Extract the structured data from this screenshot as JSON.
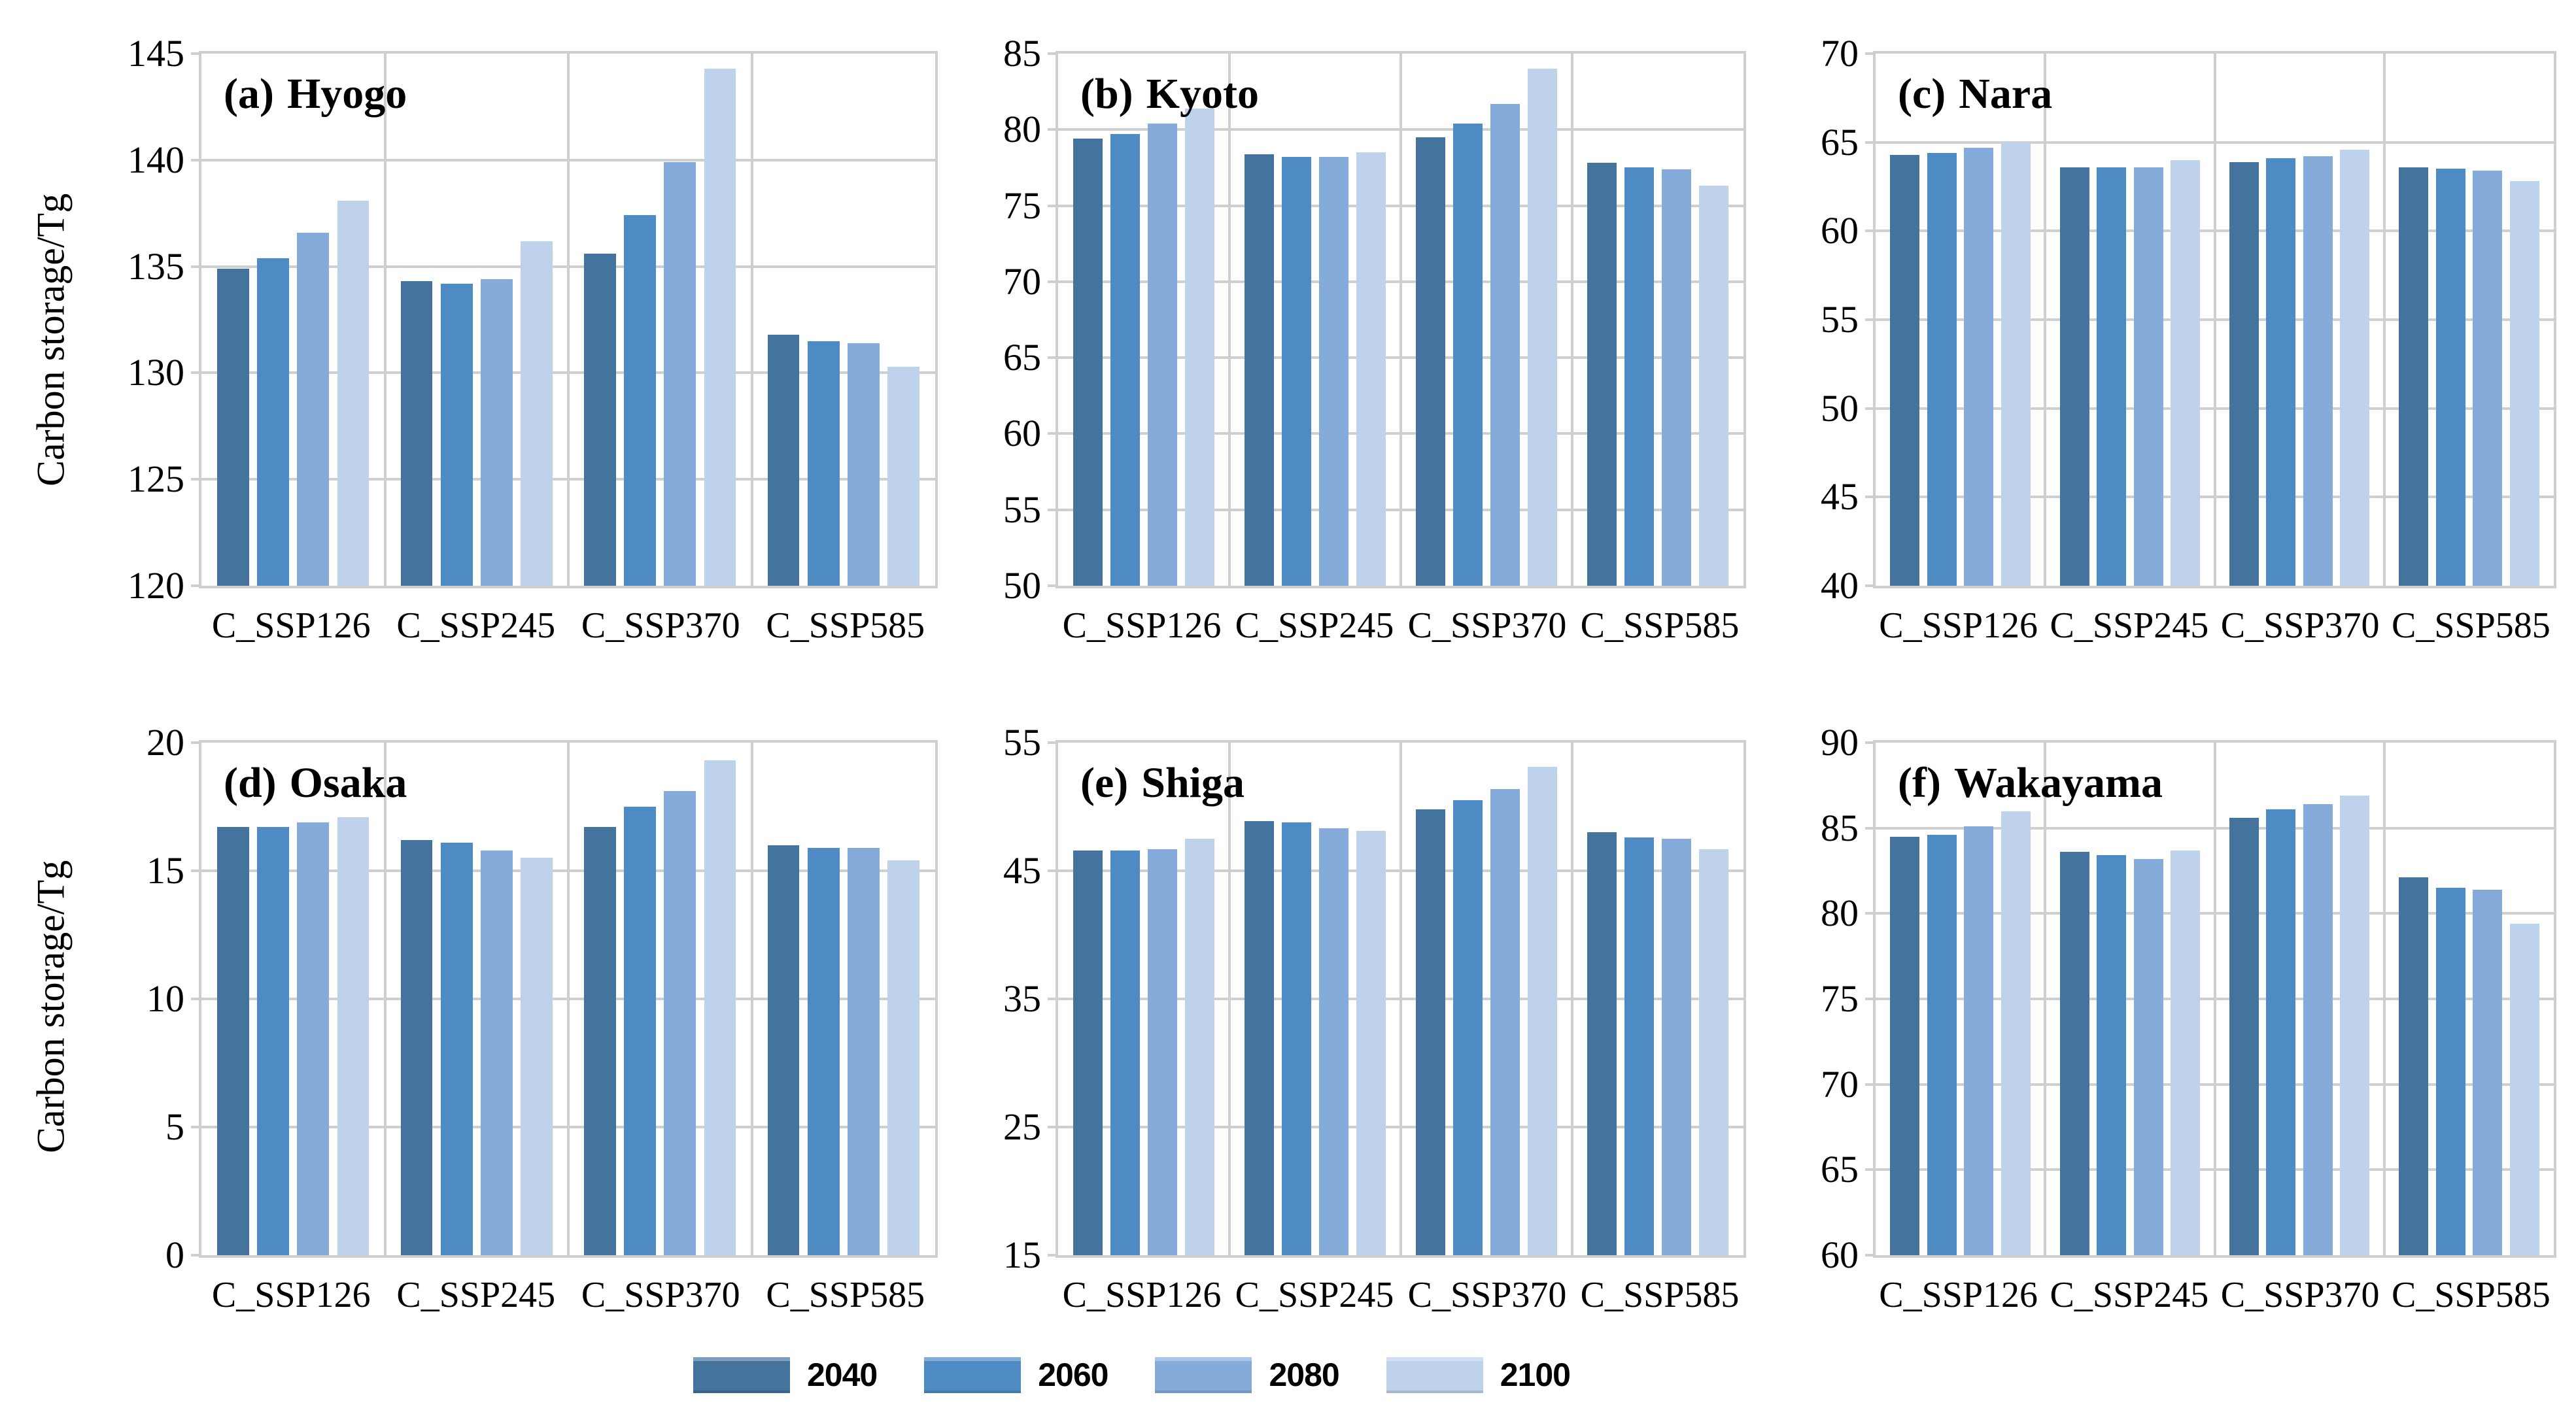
{
  "figure": {
    "y_axis_label": "Carbon storage/Tg",
    "categories": [
      "C_SSP126",
      "C_SSP245",
      "C_SSP370",
      "C_SSP585"
    ],
    "legend": [
      "2040",
      "2060",
      "2080",
      "2100"
    ],
    "colors": {
      "2040": "#44739E",
      "2060": "#4E8AC3",
      "2080": "#85ABDA",
      "2100": "#BFD2EB"
    },
    "grid_color": "#cfcfcf",
    "legend_position": "bottom-center"
  },
  "chart_data": [
    {
      "type": "bar",
      "panel_label": "(a)",
      "region": "Hyogo",
      "ylabel": "Carbon storage/Tg",
      "show_ylabel": true,
      "ylim": [
        120,
        145
      ],
      "ystep": 5,
      "grid": true,
      "categories": [
        "C_SSP126",
        "C_SSP245",
        "C_SSP370",
        "C_SSP585"
      ],
      "series": [
        {
          "name": "2040",
          "values": [
            134.9,
            134.3,
            135.6,
            131.8
          ]
        },
        {
          "name": "2060",
          "values": [
            135.4,
            134.2,
            137.4,
            131.5
          ]
        },
        {
          "name": "2080",
          "values": [
            136.6,
            134.4,
            139.9,
            131.4
          ]
        },
        {
          "name": "2100",
          "values": [
            138.1,
            136.2,
            144.3,
            130.3
          ]
        }
      ]
    },
    {
      "type": "bar",
      "panel_label": "(b)",
      "region": "Kyoto",
      "show_ylabel": false,
      "ylim": [
        50,
        85
      ],
      "ystep": 5,
      "grid": true,
      "categories": [
        "C_SSP126",
        "C_SSP245",
        "C_SSP370",
        "C_SSP585"
      ],
      "series": [
        {
          "name": "2040",
          "values": [
            79.4,
            78.4,
            79.5,
            77.8
          ]
        },
        {
          "name": "2060",
          "values": [
            79.7,
            78.2,
            80.4,
            77.5
          ]
        },
        {
          "name": "2080",
          "values": [
            80.4,
            78.2,
            81.7,
            77.4
          ]
        },
        {
          "name": "2100",
          "values": [
            81.4,
            78.5,
            84.0,
            76.3
          ]
        }
      ]
    },
    {
      "type": "bar",
      "panel_label": "(c)",
      "region": "Nara",
      "show_ylabel": false,
      "ylim": [
        40,
        70
      ],
      "ystep": 5,
      "grid": true,
      "categories": [
        "C_SSP126",
        "C_SSP245",
        "C_SSP370",
        "C_SSP585"
      ],
      "series": [
        {
          "name": "2040",
          "values": [
            64.3,
            63.6,
            63.9,
            63.6
          ]
        },
        {
          "name": "2060",
          "values": [
            64.4,
            63.6,
            64.1,
            63.5
          ]
        },
        {
          "name": "2080",
          "values": [
            64.7,
            63.6,
            64.2,
            63.4
          ]
        },
        {
          "name": "2100",
          "values": [
            65.0,
            64.0,
            64.6,
            62.8
          ]
        }
      ]
    },
    {
      "type": "bar",
      "panel_label": "(d)",
      "region": "Osaka",
      "ylabel": "Carbon storage/Tg",
      "show_ylabel": true,
      "ylim": [
        0,
        20
      ],
      "ystep": 5,
      "grid": true,
      "categories": [
        "C_SSP126",
        "C_SSP245",
        "C_SSP370",
        "C_SSP585"
      ],
      "series": [
        {
          "name": "2040",
          "values": [
            16.7,
            16.2,
            16.7,
            16.0
          ]
        },
        {
          "name": "2060",
          "values": [
            16.7,
            16.1,
            17.5,
            15.9
          ]
        },
        {
          "name": "2080",
          "values": [
            16.9,
            15.8,
            18.1,
            15.9
          ]
        },
        {
          "name": "2100",
          "values": [
            17.1,
            15.5,
            19.3,
            15.4
          ]
        }
      ]
    },
    {
      "type": "bar",
      "panel_label": "(e)",
      "region": "Shiga",
      "show_ylabel": false,
      "ylim": [
        15,
        55
      ],
      "ystep": 10,
      "grid": true,
      "categories": [
        "C_SSP126",
        "C_SSP245",
        "C_SSP370",
        "C_SSP585"
      ],
      "series": [
        {
          "name": "2040",
          "values": [
            46.6,
            48.9,
            49.8,
            48.0
          ]
        },
        {
          "name": "2060",
          "values": [
            46.6,
            48.8,
            50.5,
            47.6
          ]
        },
        {
          "name": "2080",
          "values": [
            46.7,
            48.3,
            51.4,
            47.5
          ]
        },
        {
          "name": "2100",
          "values": [
            47.5,
            48.1,
            53.1,
            46.7
          ]
        }
      ]
    },
    {
      "type": "bar",
      "panel_label": "(f)",
      "region": "Wakayama",
      "show_ylabel": false,
      "ylim": [
        60,
        90
      ],
      "ystep": 5,
      "grid": true,
      "categories": [
        "C_SSP126",
        "C_SSP245",
        "C_SSP370",
        "C_SSP585"
      ],
      "series": [
        {
          "name": "2040",
          "values": [
            84.5,
            83.6,
            85.6,
            82.1
          ]
        },
        {
          "name": "2060",
          "values": [
            84.6,
            83.4,
            86.1,
            81.5
          ]
        },
        {
          "name": "2080",
          "values": [
            85.1,
            83.2,
            86.4,
            81.4
          ]
        },
        {
          "name": "2100",
          "values": [
            86.0,
            83.7,
            86.9,
            79.4
          ]
        }
      ]
    }
  ]
}
